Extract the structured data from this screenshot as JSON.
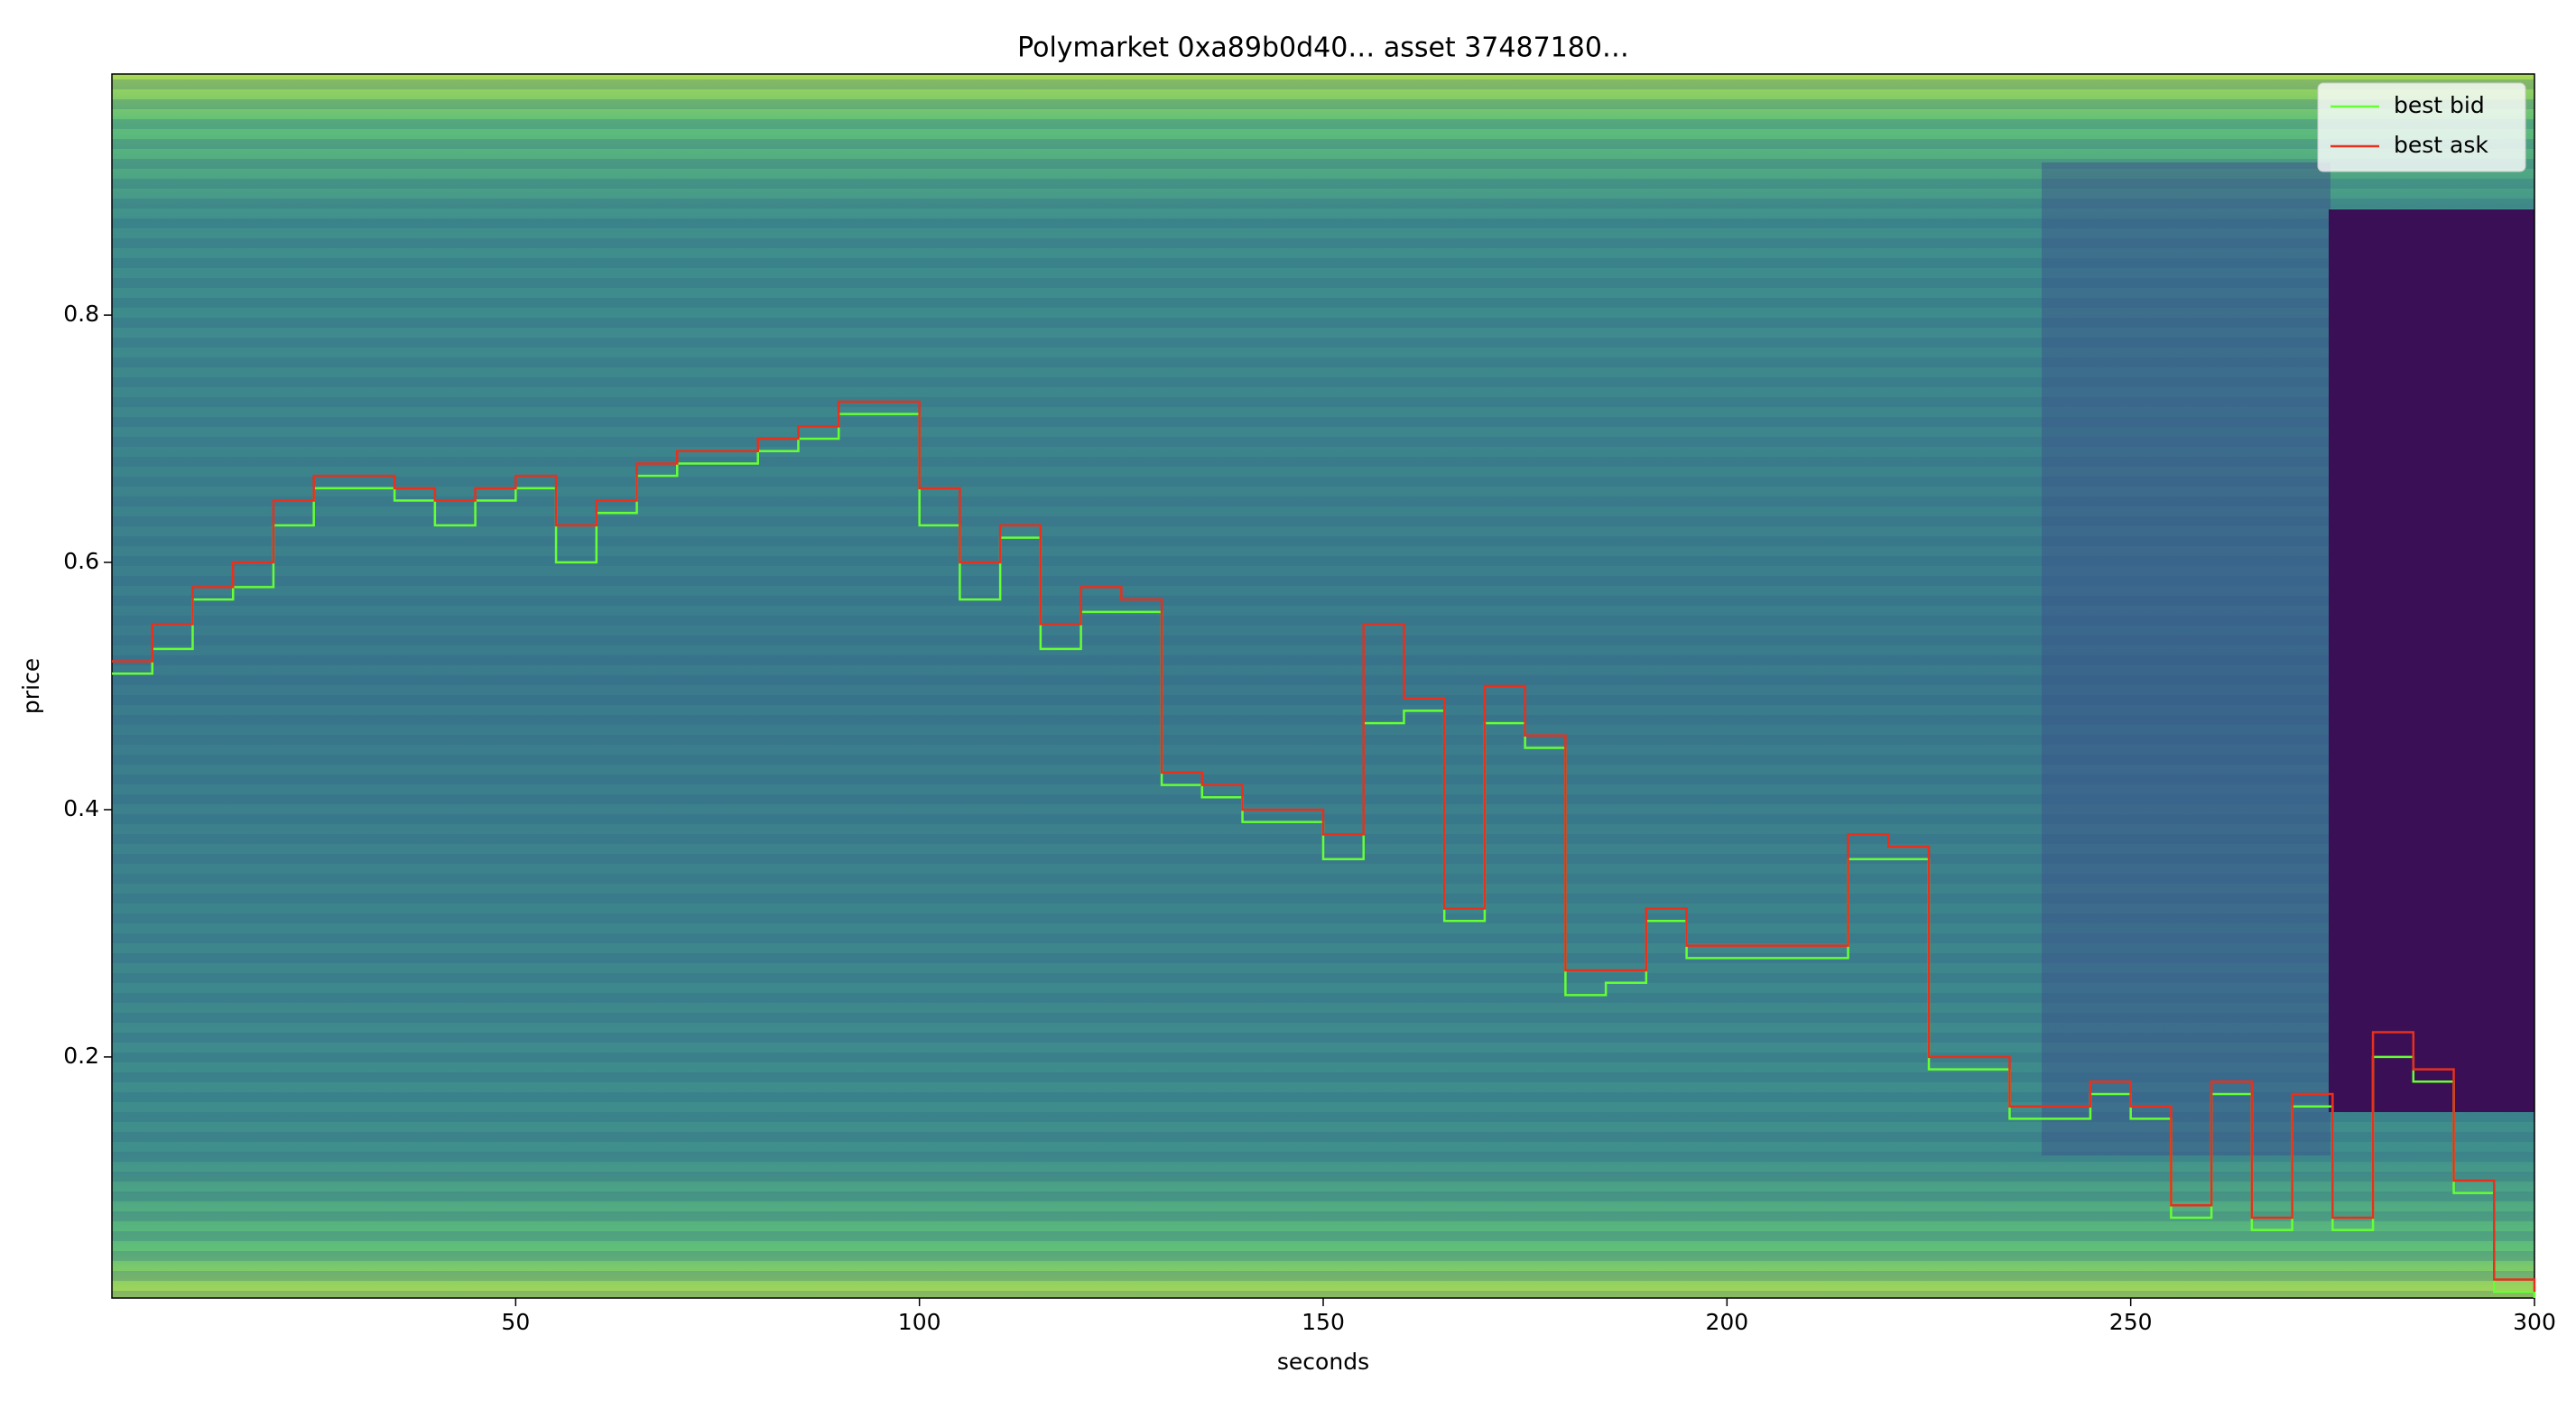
{
  "chart_data": {
    "type": "line",
    "title": "Polymarket  0xa89b0d40…  asset 37487180…",
    "xlabel": "seconds",
    "ylabel": "price",
    "x": [
      0,
      5,
      10,
      15,
      20,
      25,
      30,
      35,
      40,
      45,
      50,
      55,
      60,
      65,
      70,
      75,
      80,
      85,
      90,
      95,
      100,
      105,
      110,
      115,
      120,
      125,
      130,
      135,
      140,
      145,
      150,
      155,
      160,
      165,
      170,
      175,
      180,
      185,
      190,
      195,
      200,
      205,
      210,
      215,
      220,
      225,
      230,
      235,
      240,
      245,
      250,
      255,
      260,
      265,
      270,
      275,
      280,
      285,
      290,
      295,
      300
    ],
    "series": [
      {
        "name": "best bid",
        "color": "#66ff33",
        "values": [
          0.51,
          0.53,
          0.57,
          0.58,
          0.63,
          0.66,
          0.66,
          0.65,
          0.63,
          0.65,
          0.66,
          0.6,
          0.64,
          0.67,
          0.68,
          0.68,
          0.69,
          0.7,
          0.72,
          0.72,
          0.63,
          0.57,
          0.62,
          0.53,
          0.56,
          0.56,
          0.42,
          0.41,
          0.39,
          0.39,
          0.36,
          0.47,
          0.48,
          0.31,
          0.47,
          0.45,
          0.25,
          0.26,
          0.31,
          0.28,
          0.28,
          0.28,
          0.28,
          0.36,
          0.36,
          0.19,
          0.19,
          0.15,
          0.15,
          0.17,
          0.15,
          0.07,
          0.17,
          0.06,
          0.16,
          0.06,
          0.2,
          0.18,
          0.09,
          0.01,
          0.005
        ]
      },
      {
        "name": "best ask",
        "color": "#e8301c",
        "values": [
          0.52,
          0.55,
          0.58,
          0.6,
          0.65,
          0.67,
          0.67,
          0.66,
          0.65,
          0.66,
          0.67,
          0.63,
          0.65,
          0.68,
          0.69,
          0.69,
          0.7,
          0.71,
          0.73,
          0.73,
          0.66,
          0.6,
          0.63,
          0.55,
          0.58,
          0.57,
          0.43,
          0.42,
          0.4,
          0.4,
          0.38,
          0.55,
          0.49,
          0.32,
          0.5,
          0.46,
          0.27,
          0.27,
          0.32,
          0.29,
          0.29,
          0.29,
          0.29,
          0.38,
          0.37,
          0.2,
          0.2,
          0.16,
          0.16,
          0.18,
          0.16,
          0.08,
          0.18,
          0.07,
          0.17,
          0.07,
          0.22,
          0.19,
          0.1,
          0.02,
          0.01
        ]
      }
    ],
    "xlim": [
      0,
      300
    ],
    "xticks": [
      50,
      100,
      150,
      200,
      250,
      300
    ],
    "ylim": [
      0.005,
      0.995
    ],
    "yticks": [
      0.2,
      0.4,
      0.6,
      0.8
    ],
    "legend": "upper right"
  }
}
